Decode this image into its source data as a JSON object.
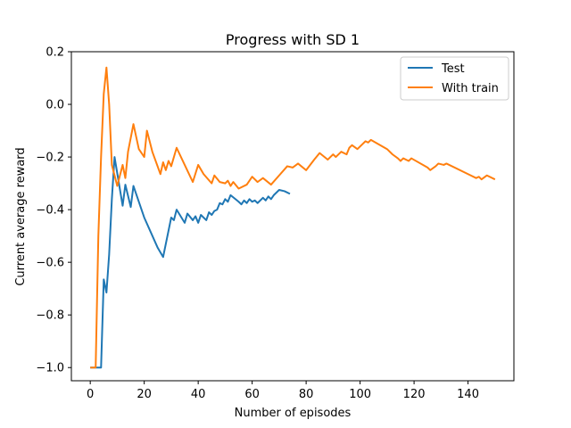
{
  "chart_data": {
    "type": "line",
    "title": "Progress with SD 1",
    "xlabel": "Number of episodes",
    "ylabel": "Current average reward",
    "xlim": [
      -7,
      157
    ],
    "ylim": [
      -1.05,
      0.2
    ],
    "xticks": [
      0,
      20,
      40,
      60,
      80,
      100,
      120,
      140
    ],
    "yticks": [
      -1.0,
      -0.8,
      -0.6,
      -0.4,
      -0.2,
      0.0,
      0.2
    ],
    "xtick_labels": [
      "0",
      "20",
      "40",
      "60",
      "80",
      "100",
      "120",
      "140"
    ],
    "ytick_labels": [
      "−1.0",
      "−0.8",
      "−0.6",
      "−0.4",
      "−0.2",
      "0.0",
      "0.2"
    ],
    "grid": false,
    "legend_position": "top-right",
    "series": [
      {
        "name": "Test",
        "color": "#1f77b4",
        "points": [
          [
            0,
            -1.0
          ],
          [
            4,
            -1.0
          ],
          [
            5,
            -0.665
          ],
          [
            6,
            -0.715
          ],
          [
            7,
            -0.57
          ],
          [
            8,
            -0.36
          ],
          [
            9,
            -0.2
          ],
          [
            12,
            -0.385
          ],
          [
            13,
            -0.305
          ],
          [
            15,
            -0.39
          ],
          [
            16,
            -0.31
          ],
          [
            20,
            -0.43
          ],
          [
            25,
            -0.545
          ],
          [
            27,
            -0.58
          ],
          [
            30,
            -0.43
          ],
          [
            31,
            -0.44
          ],
          [
            32,
            -0.4
          ],
          [
            35,
            -0.45
          ],
          [
            36,
            -0.415
          ],
          [
            38,
            -0.44
          ],
          [
            39,
            -0.425
          ],
          [
            40,
            -0.45
          ],
          [
            41,
            -0.42
          ],
          [
            43,
            -0.44
          ],
          [
            44,
            -0.41
          ],
          [
            45,
            -0.42
          ],
          [
            46,
            -0.405
          ],
          [
            47,
            -0.4
          ],
          [
            48,
            -0.375
          ],
          [
            49,
            -0.38
          ],
          [
            50,
            -0.36
          ],
          [
            51,
            -0.37
          ],
          [
            52,
            -0.345
          ],
          [
            55,
            -0.37
          ],
          [
            56,
            -0.38
          ],
          [
            57,
            -0.365
          ],
          [
            58,
            -0.375
          ],
          [
            59,
            -0.36
          ],
          [
            60,
            -0.37
          ],
          [
            61,
            -0.365
          ],
          [
            62,
            -0.375
          ],
          [
            64,
            -0.355
          ],
          [
            65,
            -0.365
          ],
          [
            66,
            -0.35
          ],
          [
            67,
            -0.36
          ],
          [
            68,
            -0.345
          ],
          [
            70,
            -0.325
          ],
          [
            72,
            -0.33
          ],
          [
            74,
            -0.34
          ]
        ]
      },
      {
        "name": "With train",
        "color": "#ff7f0e",
        "points": [
          [
            0,
            -1.0
          ],
          [
            2,
            -1.0
          ],
          [
            3,
            -0.5
          ],
          [
            4,
            -0.2
          ],
          [
            5,
            0.04
          ],
          [
            6,
            0.14
          ],
          [
            7,
            0.0
          ],
          [
            8,
            -0.23
          ],
          [
            10,
            -0.31
          ],
          [
            12,
            -0.23
          ],
          [
            13,
            -0.28
          ],
          [
            14,
            -0.18
          ],
          [
            16,
            -0.075
          ],
          [
            18,
            -0.17
          ],
          [
            20,
            -0.2
          ],
          [
            21,
            -0.1
          ],
          [
            23,
            -0.18
          ],
          [
            26,
            -0.265
          ],
          [
            27,
            -0.22
          ],
          [
            28,
            -0.25
          ],
          [
            29,
            -0.215
          ],
          [
            30,
            -0.235
          ],
          [
            32,
            -0.165
          ],
          [
            35,
            -0.23
          ],
          [
            38,
            -0.295
          ],
          [
            40,
            -0.23
          ],
          [
            42,
            -0.265
          ],
          [
            45,
            -0.3
          ],
          [
            46,
            -0.27
          ],
          [
            48,
            -0.295
          ],
          [
            50,
            -0.3
          ],
          [
            51,
            -0.29
          ],
          [
            52,
            -0.31
          ],
          [
            53,
            -0.295
          ],
          [
            55,
            -0.32
          ],
          [
            58,
            -0.305
          ],
          [
            60,
            -0.275
          ],
          [
            62,
            -0.295
          ],
          [
            64,
            -0.28
          ],
          [
            67,
            -0.305
          ],
          [
            70,
            -0.27
          ],
          [
            73,
            -0.235
          ],
          [
            75,
            -0.24
          ],
          [
            77,
            -0.225
          ],
          [
            80,
            -0.25
          ],
          [
            83,
            -0.21
          ],
          [
            85,
            -0.185
          ],
          [
            88,
            -0.21
          ],
          [
            89,
            -0.2
          ],
          [
            90,
            -0.19
          ],
          [
            91,
            -0.2
          ],
          [
            93,
            -0.18
          ],
          [
            95,
            -0.19
          ],
          [
            96,
            -0.165
          ],
          [
            97,
            -0.155
          ],
          [
            99,
            -0.17
          ],
          [
            101,
            -0.15
          ],
          [
            102,
            -0.14
          ],
          [
            103,
            -0.145
          ],
          [
            104,
            -0.135
          ],
          [
            110,
            -0.17
          ],
          [
            112,
            -0.19
          ],
          [
            114,
            -0.205
          ],
          [
            115,
            -0.215
          ],
          [
            116,
            -0.205
          ],
          [
            118,
            -0.215
          ],
          [
            119,
            -0.205
          ],
          [
            125,
            -0.24
          ],
          [
            126,
            -0.25
          ],
          [
            128,
            -0.235
          ],
          [
            129,
            -0.225
          ],
          [
            131,
            -0.23
          ],
          [
            132,
            -0.225
          ],
          [
            140,
            -0.265
          ],
          [
            143,
            -0.28
          ],
          [
            144,
            -0.275
          ],
          [
            145,
            -0.285
          ],
          [
            147,
            -0.27
          ],
          [
            150,
            -0.285
          ]
        ]
      }
    ]
  }
}
